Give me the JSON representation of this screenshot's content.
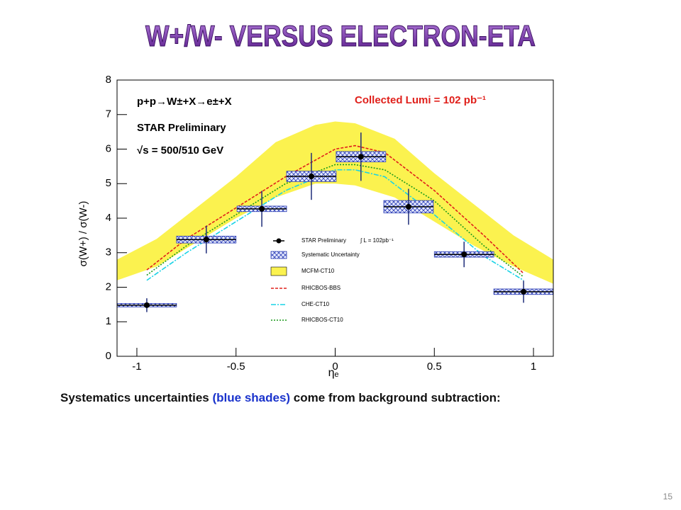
{
  "slide": {
    "title": "W+/W- VERSUS ELECTRON-ETA",
    "caption": [
      "Systematics uncertainties ",
      "(blue shades)",
      " come from background subtraction:"
    ],
    "page_number": "15"
  },
  "chart_data": {
    "type": "scatter",
    "x_label": "ηₑ",
    "y_label": "σ(W+) / σ(W-)",
    "annotations": [
      "p+p→W±+X→e±+X",
      "STAR Preliminary",
      "√s = 500/510 GeV"
    ],
    "lumi_label": "Collected Lumi = 102 pb⁻¹",
    "legend_note": "∫ L = 102pb⁻¹",
    "xlim": [
      -1.1,
      1.1
    ],
    "ylim": [
      0,
      8
    ],
    "xticks": [
      -1,
      -0.5,
      0,
      0.5,
      1
    ],
    "yticks": [
      0,
      1,
      2,
      3,
      4,
      5,
      6,
      7,
      8
    ],
    "series": [
      {
        "name": "STAR Preliminary",
        "kind": "points",
        "color": "#000000",
        "error_color": "#1f2d7a",
        "x": [
          -0.95,
          -0.65,
          -0.37,
          -0.12,
          0.13,
          0.37,
          0.65,
          0.95
        ],
        "values": [
          1.48,
          3.38,
          4.27,
          5.21,
          5.78,
          4.33,
          2.95,
          1.87
        ],
        "xerr": [
          0.15,
          0.15,
          0.125,
          0.125,
          0.125,
          0.125,
          0.15,
          0.15
        ],
        "yerr": [
          0.2,
          0.4,
          0.52,
          0.68,
          0.7,
          0.52,
          0.37,
          0.32
        ],
        "sys": [
          0.05,
          0.1,
          0.08,
          0.15,
          0.15,
          0.18,
          0.08,
          0.08
        ],
        "sys_name": "Systematic Uncertainty",
        "sys_color": "#2b3db5"
      },
      {
        "name": "MCFM-CT10",
        "kind": "band",
        "color": "#fbf24f",
        "x": [
          -1.1,
          -0.9,
          -0.7,
          -0.5,
          -0.3,
          -0.1,
          0,
          0.1,
          0.3,
          0.5,
          0.7,
          0.9,
          1.1
        ],
        "upper": [
          2.8,
          3.4,
          4.3,
          5.2,
          6.2,
          6.7,
          6.8,
          6.75,
          6.3,
          5.3,
          4.4,
          3.5,
          2.8
        ],
        "lower": [
          2.2,
          2.6,
          3.3,
          4.0,
          4.6,
          5.0,
          5.0,
          4.95,
          4.6,
          3.9,
          3.2,
          2.6,
          2.1
        ]
      },
      {
        "name": "RHICBOS-BBS",
        "kind": "line",
        "color": "#e0201b",
        "dash": "4,2",
        "x": [
          -0.95,
          -0.75,
          -0.5,
          -0.25,
          0,
          0.1,
          0.25,
          0.5,
          0.75,
          0.95
        ],
        "values": [
          2.5,
          3.4,
          4.3,
          5.2,
          6.0,
          6.1,
          5.9,
          4.8,
          3.5,
          2.4
        ]
      },
      {
        "name": "CHE-CT10",
        "kind": "line",
        "color": "#19d3e6",
        "dash": "7,2,2,2",
        "x": [
          -0.95,
          -0.75,
          -0.5,
          -0.25,
          0,
          0.1,
          0.25,
          0.5,
          0.75,
          0.95
        ],
        "values": [
          2.2,
          3.0,
          3.9,
          4.8,
          5.4,
          5.4,
          5.2,
          4.1,
          2.9,
          2.2
        ]
      },
      {
        "name": "RHICBOS-CT10",
        "kind": "line",
        "color": "#1a9a1a",
        "dash": "2,2",
        "x": [
          -0.95,
          -0.75,
          -0.5,
          -0.25,
          0,
          0.1,
          0.25,
          0.5,
          0.75,
          0.95
        ],
        "values": [
          2.35,
          3.2,
          4.1,
          5.0,
          5.55,
          5.55,
          5.4,
          4.5,
          3.2,
          2.3
        ]
      }
    ]
  }
}
